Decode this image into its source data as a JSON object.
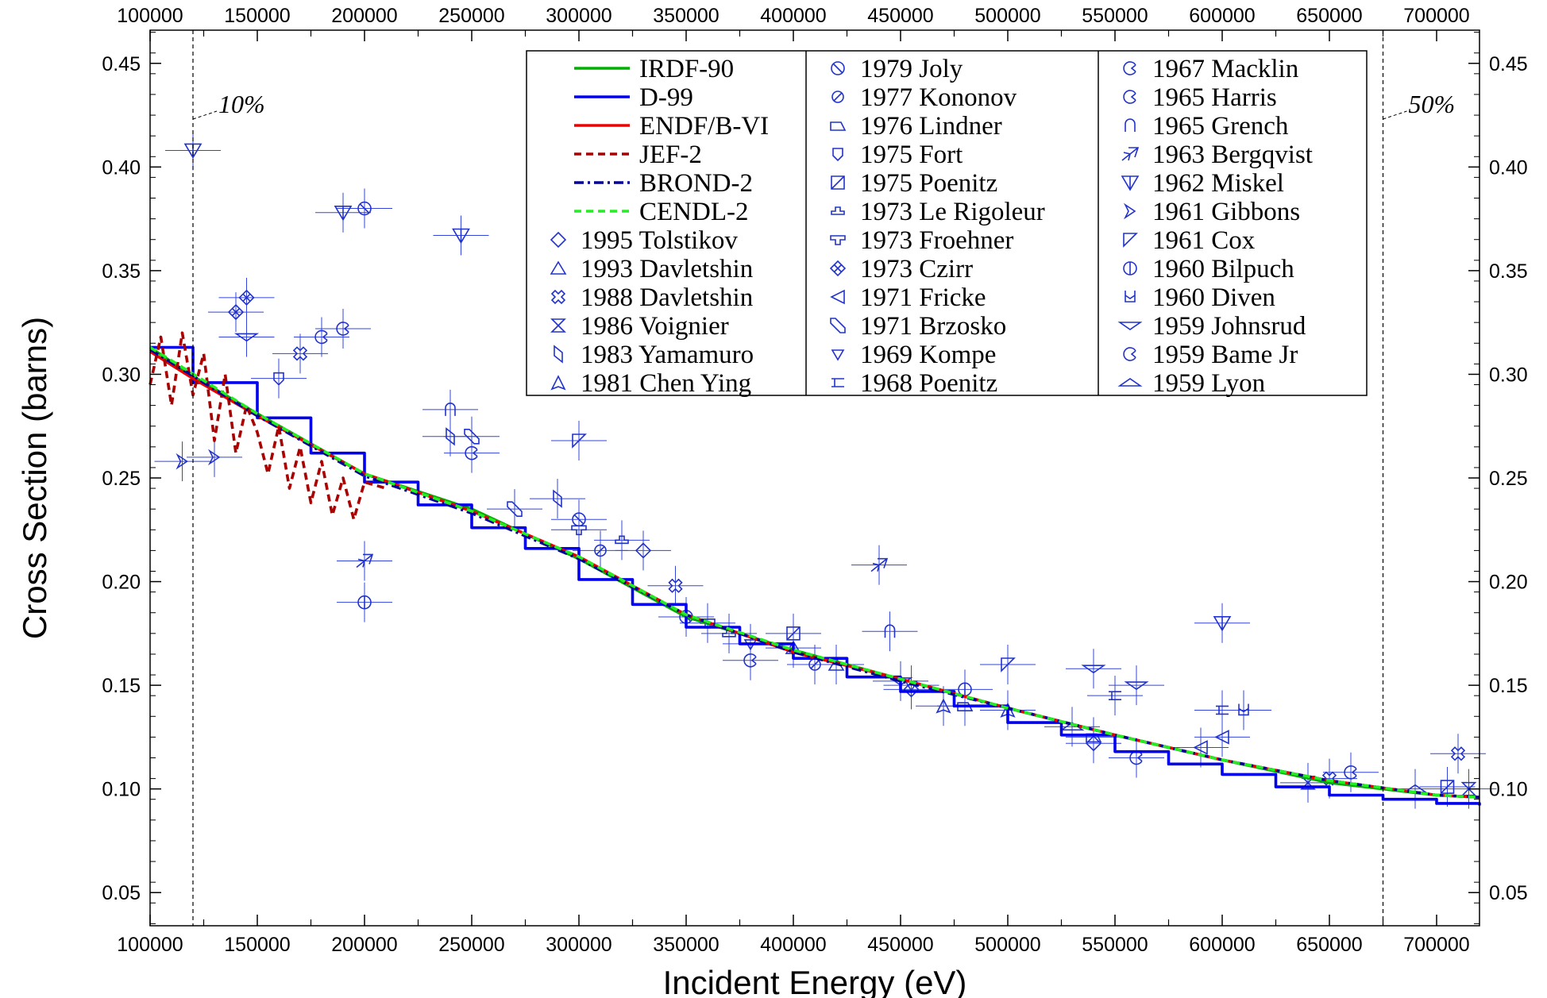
{
  "chart_data": {
    "type": "line",
    "xlabel": "Incident Energy  (eV)",
    "ylabel": "Cross Section  (barns)",
    "xlim": [
      100000,
      720000
    ],
    "ylim": [
      0.034,
      0.466
    ],
    "x_ticks": [
      100000,
      150000,
      200000,
      250000,
      300000,
      350000,
      400000,
      450000,
      500000,
      550000,
      600000,
      650000,
      700000
    ],
    "y_ticks": [
      0.05,
      0.1,
      0.15,
      0.2,
      0.25,
      0.3,
      0.35,
      0.4,
      0.45
    ],
    "x_tick_labels": [
      "100000",
      "150000",
      "200000",
      "250000",
      "300000",
      "350000",
      "400000",
      "450000",
      "500000",
      "550000",
      "600000",
      "650000",
      "700000"
    ],
    "y_tick_labels": [
      "0.05",
      "0.10",
      "0.15",
      "0.20",
      "0.25",
      "0.30",
      "0.35",
      "0.40",
      "0.45"
    ],
    "grid": false,
    "legend_position": "top-right",
    "annotations": [
      {
        "text": "10%",
        "x": 120000
      },
      {
        "text": "50%",
        "x": 675000
      }
    ],
    "series": [
      {
        "name": "IRDF-90",
        "color": "#00b000",
        "style": "solid",
        "x": [
          100000,
          120000,
          150000,
          200000,
          250000,
          300000,
          350000,
          400000,
          450000,
          500000,
          550000,
          600000,
          650000,
          700000,
          720000
        ],
        "y": [
          0.313,
          0.299,
          0.281,
          0.252,
          0.235,
          0.211,
          0.183,
          0.167,
          0.153,
          0.139,
          0.126,
          0.114,
          0.103,
          0.097,
          0.096
        ]
      },
      {
        "name": "D-99",
        "color": "#0000ee",
        "style": "solid",
        "x": [
          100000,
          120000,
          150000,
          175000,
          200000,
          225000,
          250000,
          275000,
          300000,
          325000,
          350000,
          375000,
          400000,
          425000,
          450000,
          475000,
          500000,
          525000,
          550000,
          575000,
          600000,
          625000,
          650000,
          675000,
          700000,
          720000
        ],
        "y": [
          0.313,
          0.296,
          0.279,
          0.262,
          0.248,
          0.237,
          0.226,
          0.216,
          0.201,
          0.189,
          0.178,
          0.17,
          0.163,
          0.154,
          0.147,
          0.14,
          0.132,
          0.126,
          0.118,
          0.112,
          0.107,
          0.101,
          0.097,
          0.095,
          0.093,
          0.092
        ]
      },
      {
        "name": "ENDF/B-VI",
        "color": "#ee0000",
        "style": "solid",
        "x": [
          100000,
          120000,
          150000,
          200000,
          250000,
          300000,
          350000,
          400000,
          450000,
          500000,
          550000,
          600000,
          650000,
          700000,
          720000
        ],
        "y": [
          0.311,
          0.298,
          0.28,
          0.252,
          0.234,
          0.212,
          0.184,
          0.166,
          0.153,
          0.139,
          0.126,
          0.114,
          0.104,
          0.097,
          0.096
        ]
      },
      {
        "name": "JEF-2",
        "color": "#aa0000",
        "style": "dash",
        "x": [
          100000,
          105000,
          110000,
          115000,
          120000,
          125000,
          130000,
          135000,
          140000,
          145000,
          150000,
          155000,
          160000,
          165000,
          170000,
          175000,
          180000,
          185000,
          190000,
          195000,
          200000,
          210000
        ],
        "y": [
          0.295,
          0.318,
          0.285,
          0.32,
          0.29,
          0.31,
          0.268,
          0.3,
          0.262,
          0.285,
          0.272,
          0.252,
          0.275,
          0.245,
          0.265,
          0.238,
          0.258,
          0.232,
          0.25,
          0.23,
          0.248,
          0.245
        ]
      },
      {
        "name": "BROND-2",
        "color": "#000099",
        "style": "dashdot",
        "x": [
          100000,
          150000,
          200000,
          250000,
          300000,
          350000,
          400000,
          450000,
          500000,
          550000,
          600000,
          650000,
          700000,
          720000
        ],
        "y": [
          0.312,
          0.28,
          0.251,
          0.233,
          0.211,
          0.184,
          0.166,
          0.152,
          0.139,
          0.126,
          0.114,
          0.104,
          0.097,
          0.096
        ]
      },
      {
        "name": "CENDL-2",
        "color": "#22ee22",
        "style": "dash",
        "x": [
          100000,
          150000,
          200000,
          250000,
          300000,
          350000,
          400000,
          450000,
          500000,
          550000,
          600000,
          650000,
          700000,
          720000
        ],
        "y": [
          0.313,
          0.281,
          0.252,
          0.234,
          0.212,
          0.184,
          0.167,
          0.153,
          0.139,
          0.126,
          0.114,
          0.104,
          0.097,
          0.096
        ]
      }
    ],
    "experimental_sets": [
      {
        "name": "1995 Tolstikov",
        "marker": "diamond",
        "points": [
          [
            330000,
            0.215
          ],
          [
            455000,
            0.148
          ],
          [
            540000,
            0.122
          ]
        ]
      },
      {
        "name": "1993 Davletshin",
        "marker": "triangle-up",
        "points": [
          [
            400000,
            0.168
          ],
          [
            420000,
            0.16
          ]
        ]
      },
      {
        "name": "1988 Davletshin",
        "marker": "cross-x",
        "points": [
          [
            170000,
            0.31
          ],
          [
            345000,
            0.198
          ],
          [
            650000,
            0.105
          ],
          [
            710000,
            0.117
          ]
        ]
      },
      {
        "name": "1986 Voignier",
        "marker": "bowtie",
        "points": [
          [
            640000,
            0.103
          ],
          [
            715000,
            0.1
          ]
        ]
      },
      {
        "name": "1983 Yamamuro",
        "marker": "parallelogram",
        "points": [
          [
            290000,
            0.24
          ],
          [
            240000,
            0.27
          ]
        ]
      },
      {
        "name": "1981 Chen Ying",
        "marker": "tripod",
        "points": [
          [
            470000,
            0.14
          ],
          [
            500000,
            0.138
          ]
        ]
      },
      {
        "name": "1979 Joly",
        "marker": "circle-slash",
        "points": [
          [
            200000,
            0.38
          ],
          [
            300000,
            0.23
          ],
          [
            350000,
            0.183
          ]
        ]
      },
      {
        "name": "1977 Kononov",
        "marker": "circle-slash2",
        "points": [
          [
            310000,
            0.215
          ],
          [
            410000,
            0.16
          ]
        ]
      },
      {
        "name": "1976 Lindner",
        "marker": "half-rect",
        "points": [
          [
            540000,
            0.125
          ],
          [
            480000,
            0.14
          ]
        ]
      },
      {
        "name": "1975 Fort",
        "marker": "cup",
        "points": [
          [
            160000,
            0.298
          ]
        ]
      },
      {
        "name": "1975 Poenitz",
        "marker": "square-slash",
        "points": [
          [
            400000,
            0.175
          ],
          [
            705000,
            0.101
          ]
        ]
      },
      {
        "name": "1973 Le Rigoleur",
        "marker": "step",
        "points": [
          [
            320000,
            0.22
          ],
          [
            370000,
            0.175
          ]
        ]
      },
      {
        "name": "1973 Froehner",
        "marker": "tee",
        "points": [
          [
            300000,
            0.225
          ],
          [
            360000,
            0.18
          ]
        ]
      },
      {
        "name": "1973 Czirr",
        "marker": "diamond-x",
        "points": [
          [
            145000,
            0.337
          ],
          [
            140000,
            0.33
          ]
        ]
      },
      {
        "name": "1971 Fricke",
        "marker": "triangle-left",
        "points": [
          [
            590000,
            0.12
          ],
          [
            600000,
            0.125
          ]
        ]
      },
      {
        "name": "1971 Brzosko",
        "marker": "slash-diamond",
        "points": [
          [
            250000,
            0.27
          ],
          [
            270000,
            0.235
          ]
        ]
      },
      {
        "name": "1969 Kompe",
        "marker": "triangle-down-small",
        "points": [
          [
            380000,
            0.17
          ],
          [
            455000,
            0.15
          ]
        ]
      },
      {
        "name": "1968 Poenitz",
        "marker": "bracket",
        "points": [
          [
            550000,
            0.145
          ],
          [
            600000,
            0.138
          ]
        ]
      },
      {
        "name": "1967 Macklin",
        "marker": "circle-c",
        "points": [
          [
            180000,
            0.318
          ],
          [
            380000,
            0.162
          ]
        ]
      },
      {
        "name": "1965 Harris",
        "marker": "circle-c2",
        "points": [
          [
            250000,
            0.262
          ],
          [
            560000,
            0.115
          ]
        ]
      },
      {
        "name": "1965 Grench",
        "marker": "arch",
        "points": [
          [
            240000,
            0.283
          ],
          [
            445000,
            0.176
          ]
        ]
      },
      {
        "name": "1963 Bergqvist",
        "marker": "star-arrow",
        "points": [
          [
            200000,
            0.21
          ],
          [
            440000,
            0.208
          ]
        ]
      },
      {
        "name": "1962 Miskel",
        "marker": "triangle-down",
        "points": [
          [
            120000,
            0.408
          ],
          [
            190000,
            0.378
          ],
          [
            245000,
            0.367
          ],
          [
            600000,
            0.18
          ]
        ]
      },
      {
        "name": "1961 Gibbons",
        "marker": "chevron",
        "points": [
          [
            115000,
            0.258
          ],
          [
            130000,
            0.26
          ]
        ]
      },
      {
        "name": "1961 Cox",
        "marker": "right-triangle",
        "points": [
          [
            300000,
            0.268
          ],
          [
            500000,
            0.16
          ]
        ]
      },
      {
        "name": "1960 Bilpuch",
        "marker": "circle-bar",
        "points": [
          [
            200000,
            0.19
          ],
          [
            480000,
            0.148
          ]
        ]
      },
      {
        "name": "1960 Diven",
        "marker": "cup-open",
        "points": [
          [
            610000,
            0.138
          ]
        ]
      },
      {
        "name": "1959 Johnsrud",
        "marker": "flat-triangle-down",
        "points": [
          [
            145000,
            0.318
          ],
          [
            450000,
            0.152
          ],
          [
            540000,
            0.158
          ],
          [
            560000,
            0.15
          ]
        ]
      },
      {
        "name": "1959 Bame Jr",
        "marker": "circle-c3",
        "points": [
          [
            190000,
            0.322
          ],
          [
            660000,
            0.108
          ]
        ]
      },
      {
        "name": "1959 Lyon",
        "marker": "flat-triangle-up",
        "points": [
          [
            530000,
            0.13
          ],
          [
            690000,
            0.1
          ]
        ]
      }
    ]
  }
}
